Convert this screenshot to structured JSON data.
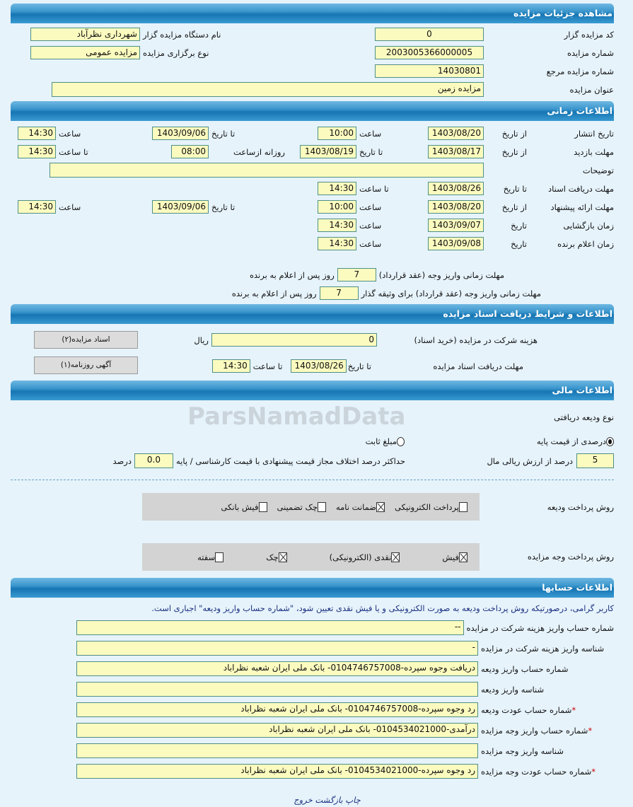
{
  "watermark": "ParsNamadData",
  "s1": {
    "title": "مشاهده جزئیات مزایده",
    "code_label": "کد مزایده گزار",
    "code": "0",
    "org_label": "نام دستگاه مزایده گزار",
    "org": "شهرداری نظرآباد",
    "num_label": "شماره مزایده",
    "num": "2003005366000005",
    "type_label": "نوع برگزاری مزایده",
    "type": "مزایده عمومی",
    "ref_label": "شماره مزایده مرجع",
    "ref": "14030801",
    "subject_label": "عنوان مزایده",
    "subject": "مزایده زمین"
  },
  "s2": {
    "title": "اطلاعات زمانی",
    "from_date": "از تاریخ",
    "to_date": "تا تاریخ",
    "time": "ساعت",
    "to_time": "تا ساعت",
    "date": "تاریخ",
    "daily_from": "روزانه ازساعت",
    "publish": {
      "label": "تاریخ انتشار",
      "from": "1403/08/20",
      "from_time": "10:00",
      "to": "1403/09/06",
      "to_time": "14:30"
    },
    "visit": {
      "label": "مهلت بازدید",
      "from": "1403/08/17",
      "to": "1403/08/19",
      "daily": "08:00",
      "to_time": "14:30"
    },
    "notes": {
      "label": "توضیحات",
      "value": ""
    },
    "docs": {
      "label": "مهلت دریافت اسناد",
      "to": "1403/08/26",
      "to_time": "14:30"
    },
    "offer": {
      "label": "مهلت ارائه پیشنهاد",
      "from": "1403/08/20",
      "from_time": "10:00",
      "to": "1403/09/06",
      "to_time": "14:30"
    },
    "opening": {
      "label": "زمان بازگشایی",
      "date": "1403/09/07",
      "time": "14:30"
    },
    "winner": {
      "label": "زمان اعلام برنده",
      "date": "1403/09/08",
      "time": "14:30"
    },
    "pay1": {
      "label": "مهلت زمانی واریز وجه (عقد قرارداد)",
      "value": "7",
      "suffix": "روز پس از اعلام به برنده"
    },
    "pay2": {
      "label": "مهلت زمانی واریز وجه (عقد قرارداد) برای وثیقه گذار",
      "value": "7",
      "suffix": "روز پس از اعلام به برنده"
    }
  },
  "s3": {
    "title": "اطلاعات و شرایط دریافت اسناد مزایده",
    "fee_label": "هزینه شرکت در مزایده (خرید اسناد)",
    "fee": "0",
    "currency": "ریال",
    "deadline_label": "مهلت دریافت اسناد مزایده",
    "to_date_label": "تا تاریخ",
    "to_date": "1403/08/26",
    "to_time_label": "تا ساعت",
    "to_time": "14:30",
    "docs_button": "اسناد مزایده(۲)",
    "ad_button": "آگهی روزنامه(۱)"
  },
  "s4": {
    "title": "اطلاعات مالی",
    "deposit_type_label": "نوع ودیعه دریافتی",
    "radio_percent": "درصدی از قیمت پایه",
    "radio_fixed": "مبلغ ثابت",
    "selected": "درصدی از قیمت پایه",
    "percent": "5",
    "percent_suffix": "درصد از ارزش ریالی مال",
    "max_diff_label": "حداکثر درصد اختلاف مجاز قیمت پیشنهادی با قیمت کارشناسی / پایه",
    "max_diff": "0.0",
    "max_diff_suffix": "درصد",
    "deposit_method_label": "روش پرداخت ودیعه",
    "deposit_methods": [
      {
        "label": "پرداخت الکترونیکی",
        "checked": false
      },
      {
        "label": "ضمانت نامه",
        "checked": true
      },
      {
        "label": "چک تضمینی",
        "checked": false
      },
      {
        "label": "فیش بانکی",
        "checked": false
      }
    ],
    "payment_method_label": "روش پرداخت وجه مزایده",
    "payment_methods": [
      {
        "label": "فیش",
        "checked": true
      },
      {
        "label": "نقدی (الکترونیکی)",
        "checked": true
      },
      {
        "label": "چک",
        "checked": true
      },
      {
        "label": "سفته",
        "checked": false
      }
    ]
  },
  "s5": {
    "title": "اطلاعات حسابها",
    "notice": "کاربر گرامی، درصورتیکه روش پرداخت ودیعه به صورت الکترونیکی و یا فیش نقدی تعیین شود، \"شماره حساب واریز ودیعه\" اجباری است.",
    "rows": [
      {
        "label": "شماره حساب واریز هزینه شرکت در مزایده",
        "value": "--",
        "required": false
      },
      {
        "label": "شناسه واریز هزینه شرکت در مزایده",
        "value": "-",
        "required": false
      },
      {
        "label": "شماره حساب واریز ودیعه",
        "value": "دریافت وجوه سپرده-0104746757008- بانک ملی ایران شعبه نظراباد",
        "required": false
      },
      {
        "label": "شناسه واریز ودیعه",
        "value": "",
        "required": false
      },
      {
        "label": "شماره حساب عودت ودیعه",
        "value": "رد وجوه سپرده-0104746757008- بانک ملی ایران شعبه نظراباد",
        "required": true
      },
      {
        "label": "شماره حساب واریز وجه مزایده",
        "value": "درآمدی-0104534021000- بانک ملی ایران شعبه نظراباد",
        "required": true
      },
      {
        "label": "شناسه واریز وجه مزایده",
        "value": "",
        "required": false
      },
      {
        "label": "شماره حساب عودت وجه مزایده",
        "value": "رد وجوه سپرده-0104534021000- بانک ملی ایران شعبه نظراباد",
        "required": true
      }
    ]
  },
  "footer": {
    "print": "چاپ",
    "back": "بازگشت",
    "exit": "خروج"
  }
}
